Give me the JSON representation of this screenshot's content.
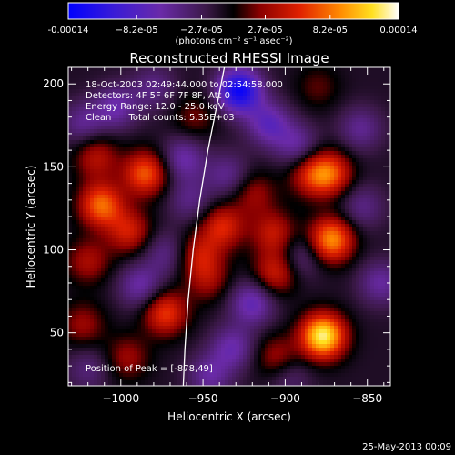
{
  "chart_data": {
    "type": "heatmap",
    "title": "Reconstructed RHESSI Image",
    "xlabel": "Heliocentric X (arcsec)",
    "ylabel": "Heliocentric Y (arcsec)",
    "xlim": [
      -1032,
      -836
    ],
    "ylim": [
      18,
      210
    ],
    "x_ticks": [
      -1000,
      -950,
      -900,
      -850
    ],
    "x_tick_labels": [
      "−1000",
      "−950",
      "−900",
      "−850"
    ],
    "y_ticks": [
      50,
      100,
      150,
      200
    ],
    "y_tick_labels": [
      "50",
      "100",
      "150",
      "200"
    ],
    "colorbar": {
      "ticks": [
        -0.00014,
        -8.2e-05,
        -2.7e-05,
        2.7e-05,
        8.2e-05,
        0.00014
      ],
      "tick_labels": [
        "-0.00014",
        "−8.2e-05",
        "−2.7e-05",
        "2.7e-05",
        "8.2e-05",
        "0.00014"
      ],
      "label": "(photons cm⁻² s⁻¹ asec⁻²)",
      "colormap": "RHESSI blue-purple-black-red-yellow-white",
      "range": [
        -0.00014,
        0.00014
      ]
    },
    "annotations": [
      "18-Oct-2003 02:49:44.000 to 02:54:58.000",
      "Detectors: 4F 5F 6F 7F 8F, Att 0",
      "Energy Range: 12.0 - 25.0 keV",
      "Clean      Total counts: 5.35E+03",
      "Position of Peak = [-878,49]"
    ],
    "peak": {
      "x": -878,
      "y": 49
    },
    "limb_curve": {
      "description": "solar limb",
      "points": [
        [
          -962,
          18
        ],
        [
          -961,
          40
        ],
        [
          -959,
          70
        ],
        [
          -956,
          100
        ],
        [
          -952,
          130
        ],
        [
          -947,
          160
        ],
        [
          -941,
          190
        ],
        [
          -937,
          210
        ]
      ]
    },
    "blobs": [
      {
        "x": -877,
        "y": 48,
        "value": 0.00014
      },
      {
        "x": -872,
        "y": 106,
        "value": 0.000105
      },
      {
        "x": -873,
        "y": 146,
        "value": 8e-05
      },
      {
        "x": -885,
        "y": 145,
        "value": 5e-05
      },
      {
        "x": -919,
        "y": 134,
        "value": 4e-05
      },
      {
        "x": -907,
        "y": 110,
        "value": 5.5e-05
      },
      {
        "x": -906,
        "y": 86,
        "value": 6e-05
      },
      {
        "x": -938,
        "y": 114,
        "value": 6.5e-05
      },
      {
        "x": -952,
        "y": 97,
        "value": 5e-05
      },
      {
        "x": -947,
        "y": 82,
        "value": 4e-05
      },
      {
        "x": -985,
        "y": 146,
        "value": 8.5e-05
      },
      {
        "x": -1012,
        "y": 127,
        "value": 9e-05
      },
      {
        "x": -995,
        "y": 111,
        "value": 6e-05
      },
      {
        "x": -1015,
        "y": 156,
        "value": 5e-05
      },
      {
        "x": -1020,
        "y": 93,
        "value": 4.5e-05
      },
      {
        "x": -1023,
        "y": 55,
        "value": 4e-05
      },
      {
        "x": -973,
        "y": 62,
        "value": 7.5e-05
      },
      {
        "x": -996,
        "y": 35,
        "value": 4e-05
      },
      {
        "x": -905,
        "y": 35,
        "value": 4.5e-05
      },
      {
        "x": -955,
        "y": 180,
        "value": 3e-05
      },
      {
        "x": -880,
        "y": 198,
        "value": 2.5e-05
      },
      {
        "x": -928,
        "y": 196,
        "value": -0.00012
      },
      {
        "x": -910,
        "y": 176,
        "value": -6e-05
      },
      {
        "x": -893,
        "y": 163,
        "value": -4.5e-05
      },
      {
        "x": -1003,
        "y": 186,
        "value": -5e-05
      },
      {
        "x": -1023,
        "y": 176,
        "value": -4e-05
      },
      {
        "x": -980,
        "y": 198,
        "value": -3.5e-05
      },
      {
        "x": -962,
        "y": 155,
        "value": -5e-05
      },
      {
        "x": -935,
        "y": 145,
        "value": -4e-05
      },
      {
        "x": -958,
        "y": 130,
        "value": -3.5e-05
      },
      {
        "x": -988,
        "y": 78,
        "value": -5e-05
      },
      {
        "x": -973,
        "y": 98,
        "value": -3.5e-05
      },
      {
        "x": -920,
        "y": 68,
        "value": -6e-05
      },
      {
        "x": -932,
        "y": 41,
        "value": -5e-05
      },
      {
        "x": -946,
        "y": 24,
        "value": -4.5e-05
      },
      {
        "x": -842,
        "y": 80,
        "value": -4.5e-05
      },
      {
        "x": -853,
        "y": 126,
        "value": -3.5e-05
      },
      {
        "x": -890,
        "y": 96,
        "value": -3.5e-05
      },
      {
        "x": -854,
        "y": 173,
        "value": -4e-05
      },
      {
        "x": -1020,
        "y": 28,
        "value": -3e-05
      },
      {
        "x": -898,
        "y": 24,
        "value": -3e-05
      }
    ]
  },
  "footer": {
    "date": "25-May-2013 00:09"
  }
}
